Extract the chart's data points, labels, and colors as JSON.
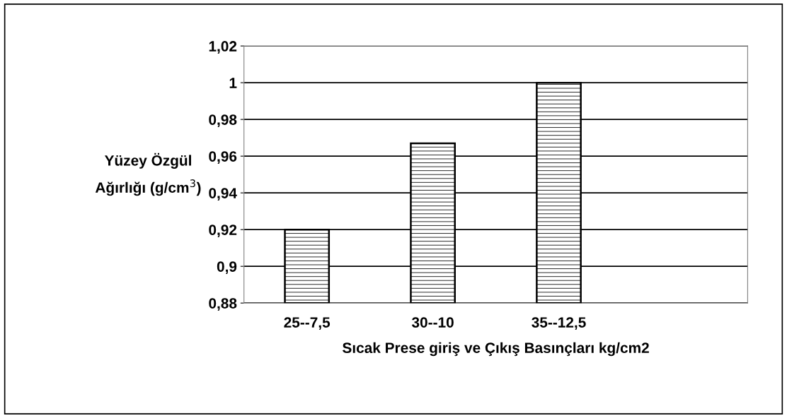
{
  "chart_data": {
    "type": "bar",
    "xlabel": "Sıcak Prese giriş ve Çıkış Basınçları kg/cm2",
    "ylabel": "Yüzey Özgül\nAğırlığı (g/cm$^{3}$)",
    "categories": [
      "25--7,5",
      "30--10",
      "35--12,5",
      null
    ],
    "values": [
      0.92,
      0.967,
      1.0,
      null
    ],
    "color": "#000000",
    "ylim": [
      0.88,
      1.02
    ],
    "yticks": [
      {
        "value": 0.88,
        "label": "0,88"
      },
      {
        "value": 0.9,
        "label": "0,9"
      },
      {
        "value": 0.92,
        "label": "0,92"
      },
      {
        "value": 0.94,
        "label": "0,94"
      },
      {
        "value": 0.96,
        "label": "0,96"
      },
      {
        "value": 0.98,
        "label": "0,98"
      },
      {
        "value": 1.0,
        "label": "1"
      },
      {
        "value": 1.02,
        "label": "1,02"
      }
    ],
    "grid": "y"
  }
}
